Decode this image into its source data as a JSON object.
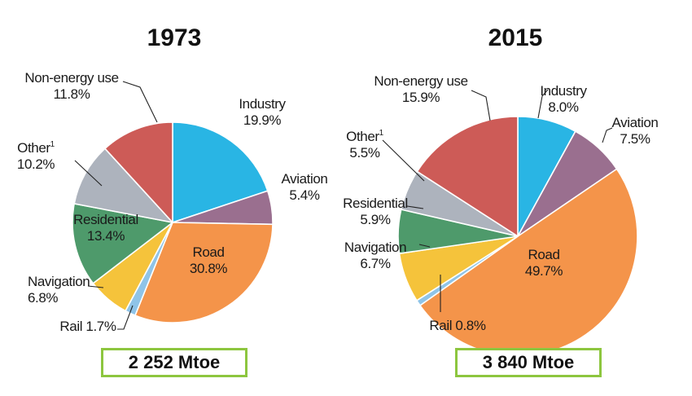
{
  "chart_data": [
    {
      "type": "pie",
      "title": "1973",
      "total": "2 252 Mtoe",
      "slices": [
        {
          "name": "Industry",
          "name_line2": "",
          "value": 19.9,
          "label": "19.9%",
          "color": "#29b5e4"
        },
        {
          "name": "Aviation",
          "name_line2": "",
          "value": 5.4,
          "label": "5.4%",
          "color": "#9a6f8f"
        },
        {
          "name": "Road",
          "name_line2": "",
          "value": 30.8,
          "label": "30.8%",
          "color": "#f4944a"
        },
        {
          "name": "Rail 1.7%",
          "name_line2": "",
          "value": 1.7,
          "label": "",
          "color": "#8fc4e8"
        },
        {
          "name": "Navigation",
          "name_line2": "",
          "value": 6.8,
          "label": "6.8%",
          "color": "#f5c33b"
        },
        {
          "name": "Residential",
          "name_line2": "",
          "value": 13.4,
          "label": "13.4%",
          "color": "#4e9a6b"
        },
        {
          "name": "Other",
          "sup": "1",
          "value": 10.2,
          "label": "10.2%",
          "color": "#adb3bd"
        },
        {
          "name": "Non-energy use",
          "name_line2": "",
          "value": 11.8,
          "label": "11.8%",
          "color": "#cd5b57"
        }
      ]
    },
    {
      "type": "pie",
      "title": "2015",
      "total": "3 840 Mtoe",
      "slices": [
        {
          "name": "Industry",
          "name_line2": "",
          "value": 8.0,
          "label": "8.0%",
          "color": "#29b5e4"
        },
        {
          "name": "Aviation",
          "name_line2": "",
          "value": 7.5,
          "label": "7.5%",
          "color": "#9a6f8f"
        },
        {
          "name": "Road",
          "name_line2": "",
          "value": 49.7,
          "label": "49.7%",
          "color": "#f4944a"
        },
        {
          "name": "Rail 0.8%",
          "name_line2": "",
          "value": 0.8,
          "label": "",
          "color": "#8fc4e8"
        },
        {
          "name": "Navigation",
          "name_line2": "",
          "value": 6.7,
          "label": "6.7%",
          "color": "#f5c33b"
        },
        {
          "name": "Residential",
          "name_line2": "",
          "value": 5.9,
          "label": "5.9%",
          "color": "#4e9a6b"
        },
        {
          "name": "Other",
          "sup": "1",
          "value": 5.5,
          "label": "5.5%",
          "color": "#adb3bd"
        },
        {
          "name": "Non-energy use",
          "name_line2": "",
          "value": 15.9,
          "label": "15.9%",
          "color": "#cd5b57"
        }
      ]
    }
  ]
}
